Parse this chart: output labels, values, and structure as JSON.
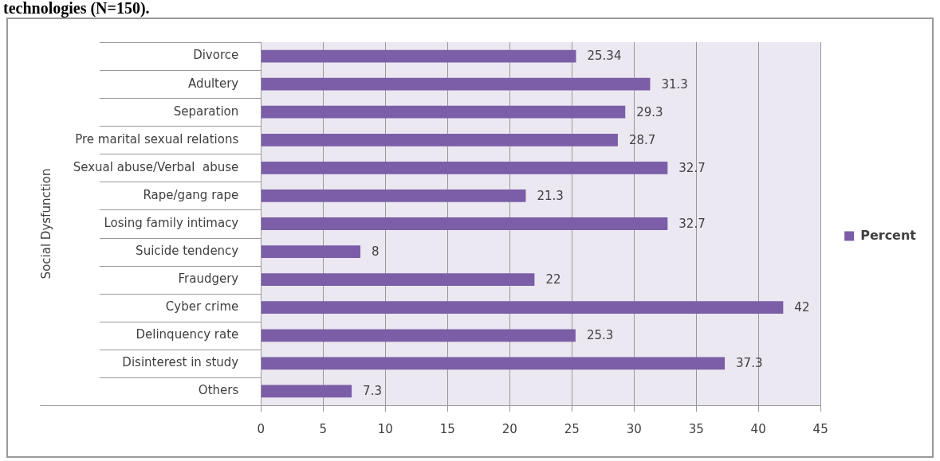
{
  "chart_data": {
    "type": "bar",
    "orientation": "horizontal",
    "title": "technologies (N=150).",
    "ylabel": "Social Dysfunction",
    "categories": [
      "Divorce",
      "Adultery",
      "Separation",
      "Pre marital sexual relations",
      "Sexual abuse/Verbal  abuse",
      "Rape/gang rape",
      "Losing family intimacy",
      "Suicide tendency",
      "Fraudgery",
      "Cyber crime",
      "Delinquency rate",
      "Disinterest in study",
      "Others"
    ],
    "series": [
      {
        "name": "Percent",
        "color": "#7b5ea7",
        "values": [
          25.34,
          31.3,
          29.3,
          28.7,
          32.7,
          21.3,
          32.7,
          8,
          22,
          42,
          25.3,
          37.3,
          7.3
        ]
      }
    ],
    "xlim": [
      0,
      45
    ],
    "xticks": [
      0,
      5,
      10,
      15,
      20,
      25,
      30,
      35,
      40,
      45
    ],
    "grid": "x",
    "legend": "right",
    "data_labels": true
  }
}
